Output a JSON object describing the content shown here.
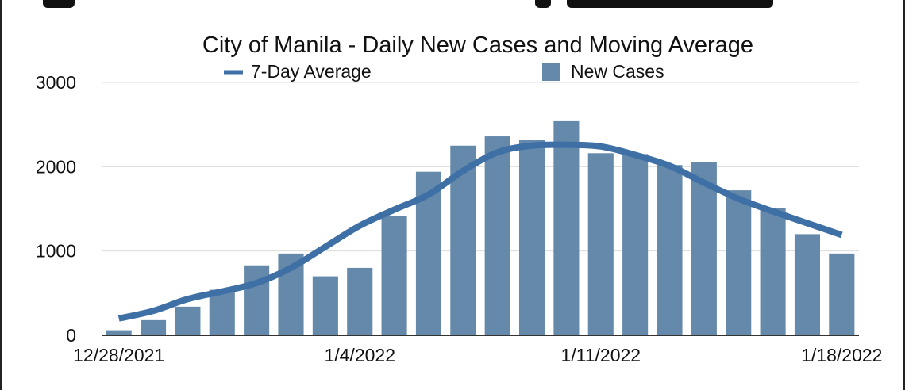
{
  "chart_data": {
    "type": "bar",
    "title": "City of Manila - Daily New Cases and Moving Average",
    "legend": [
      "7-Day Average",
      "New Cases"
    ],
    "legend_position": "top",
    "x_tick_labels": [
      "12/28/2021",
      "1/4/2022",
      "1/11/2022",
      "1/18/2022"
    ],
    "y_tick_labels": [
      "0",
      "1000",
      "2000",
      "3000"
    ],
    "ylim": [
      0,
      3000
    ],
    "grid": true,
    "categories": [
      "12/28/2021",
      "12/29/2021",
      "12/30/2021",
      "12/31/2021",
      "1/1/2022",
      "1/2/2022",
      "1/3/2022",
      "1/4/2022",
      "1/5/2022",
      "1/6/2022",
      "1/7/2022",
      "1/8/2022",
      "1/9/2022",
      "1/10/2022",
      "1/11/2022",
      "1/12/2022",
      "1/13/2022",
      "1/14/2022",
      "1/15/2022",
      "1/16/2022",
      "1/17/2022",
      "1/18/2022"
    ],
    "series": [
      {
        "name": "New Cases",
        "type": "bar",
        "values": [
          60,
          180,
          340,
          540,
          830,
          970,
          700,
          800,
          1420,
          1940,
          2250,
          2360,
          2320,
          2540,
          2160,
          2150,
          2020,
          2050,
          1720,
          1510,
          1200,
          970
        ]
      },
      {
        "name": "7-Day Average",
        "type": "line",
        "values": [
          200,
          290,
          430,
          520,
          620,
          800,
          1050,
          1300,
          1490,
          1670,
          1950,
          2170,
          2250,
          2260,
          2240,
          2140,
          2010,
          1810,
          1620,
          1470,
          1330,
          1190
        ]
      }
    ],
    "colors": {
      "bar": "#6589aa",
      "line": "#3e6fa5",
      "grid": "#dcdcdc",
      "axis": "#333333"
    }
  }
}
